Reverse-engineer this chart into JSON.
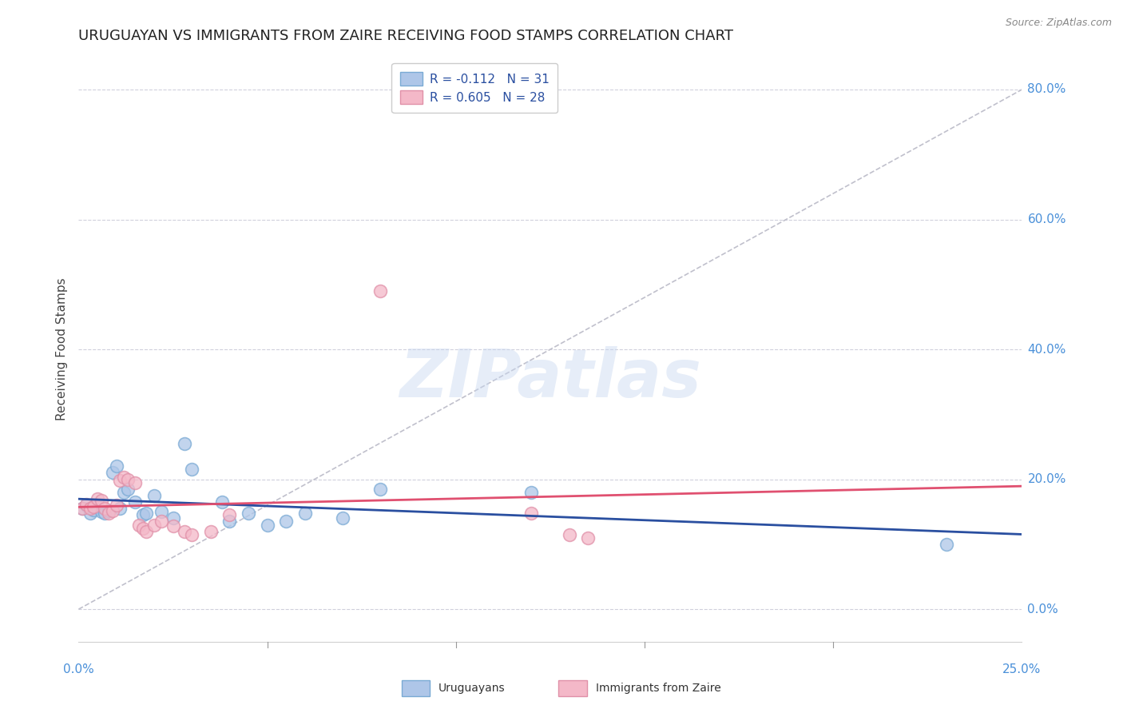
{
  "title": "URUGUAYAN VS IMMIGRANTS FROM ZAIRE RECEIVING FOOD STAMPS CORRELATION CHART",
  "source": "Source: ZipAtlas.com",
  "ylabel": "Receiving Food Stamps",
  "xlim": [
    0.0,
    0.25
  ],
  "ylim": [
    -0.05,
    0.85
  ],
  "xticks": [
    0.0,
    0.05,
    0.1,
    0.15,
    0.2,
    0.25
  ],
  "yticks": [
    0.0,
    0.2,
    0.4,
    0.6,
    0.8
  ],
  "watermark": "ZIPatlas",
  "uruguayan_points": [
    [
      0.001,
      0.155
    ],
    [
      0.002,
      0.16
    ],
    [
      0.003,
      0.148
    ],
    [
      0.004,
      0.153
    ],
    [
      0.005,
      0.158
    ],
    [
      0.006,
      0.15
    ],
    [
      0.007,
      0.148
    ],
    [
      0.008,
      0.152
    ],
    [
      0.009,
      0.21
    ],
    [
      0.01,
      0.22
    ],
    [
      0.011,
      0.155
    ],
    [
      0.012,
      0.18
    ],
    [
      0.013,
      0.185
    ],
    [
      0.015,
      0.165
    ],
    [
      0.017,
      0.145
    ],
    [
      0.018,
      0.148
    ],
    [
      0.02,
      0.175
    ],
    [
      0.022,
      0.15
    ],
    [
      0.025,
      0.14
    ],
    [
      0.028,
      0.255
    ],
    [
      0.03,
      0.215
    ],
    [
      0.038,
      0.165
    ],
    [
      0.04,
      0.135
    ],
    [
      0.045,
      0.148
    ],
    [
      0.05,
      0.13
    ],
    [
      0.055,
      0.135
    ],
    [
      0.06,
      0.148
    ],
    [
      0.07,
      0.14
    ],
    [
      0.08,
      0.185
    ],
    [
      0.12,
      0.18
    ],
    [
      0.23,
      0.1
    ]
  ],
  "zaire_points": [
    [
      0.001,
      0.155
    ],
    [
      0.002,
      0.162
    ],
    [
      0.003,
      0.155
    ],
    [
      0.004,
      0.158
    ],
    [
      0.005,
      0.17
    ],
    [
      0.006,
      0.168
    ],
    [
      0.007,
      0.155
    ],
    [
      0.008,
      0.148
    ],
    [
      0.009,
      0.152
    ],
    [
      0.01,
      0.16
    ],
    [
      0.011,
      0.198
    ],
    [
      0.012,
      0.203
    ],
    [
      0.013,
      0.2
    ],
    [
      0.015,
      0.195
    ],
    [
      0.016,
      0.13
    ],
    [
      0.017,
      0.125
    ],
    [
      0.018,
      0.12
    ],
    [
      0.02,
      0.13
    ],
    [
      0.022,
      0.135
    ],
    [
      0.025,
      0.128
    ],
    [
      0.028,
      0.12
    ],
    [
      0.03,
      0.115
    ],
    [
      0.035,
      0.12
    ],
    [
      0.04,
      0.145
    ],
    [
      0.08,
      0.49
    ],
    [
      0.12,
      0.148
    ],
    [
      0.13,
      0.115
    ],
    [
      0.135,
      0.11
    ]
  ],
  "uruguayan_line_color": "#2a4fa0",
  "zaire_line_color": "#e05070",
  "diagonal_line_color": "#c0c0cc",
  "background_color": "#ffffff",
  "grid_color": "#d0d0dc",
  "title_fontsize": 13,
  "label_fontsize": 11,
  "tick_fontsize": 11,
  "tick_color": "#4a90d9",
  "title_color": "#222222",
  "watermark_color": "#c8d8f0",
  "watermark_alpha": 0.45,
  "legend_label_color": "#2a4fa0"
}
